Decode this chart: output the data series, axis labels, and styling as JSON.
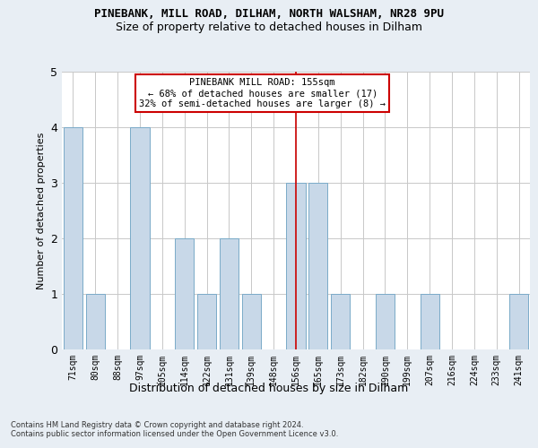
{
  "title_line1": "PINEBANK, MILL ROAD, DILHAM, NORTH WALSHAM, NR28 9PU",
  "title_line2": "Size of property relative to detached houses in Dilham",
  "xlabel": "Distribution of detached houses by size in Dilham",
  "ylabel": "Number of detached properties",
  "categories": [
    "71sqm",
    "80sqm",
    "88sqm",
    "97sqm",
    "105sqm",
    "114sqm",
    "122sqm",
    "131sqm",
    "139sqm",
    "148sqm",
    "156sqm",
    "165sqm",
    "173sqm",
    "182sqm",
    "190sqm",
    "199sqm",
    "207sqm",
    "216sqm",
    "224sqm",
    "233sqm",
    "241sqm"
  ],
  "values": [
    4,
    1,
    0,
    4,
    0,
    2,
    1,
    2,
    1,
    0,
    3,
    3,
    1,
    0,
    1,
    0,
    1,
    0,
    0,
    0,
    1
  ],
  "bar_color": "#c8d8e8",
  "bar_edge_color": "#7aaac8",
  "highlight_index": 10,
  "highlight_line_color": "#cc0000",
  "annotation_text": "PINEBANK MILL ROAD: 155sqm\n← 68% of detached houses are smaller (17)\n32% of semi-detached houses are larger (8) →",
  "annotation_box_color": "#ffffff",
  "annotation_box_edge": "#cc0000",
  "ylim": [
    0,
    5
  ],
  "yticks": [
    0,
    1,
    2,
    3,
    4,
    5
  ],
  "footer_text": "Contains HM Land Registry data © Crown copyright and database right 2024.\nContains public sector information licensed under the Open Government Licence v3.0.",
  "bg_color": "#e8eef4",
  "plot_bg_color": "#ffffff",
  "grid_color": "#c8c8c8",
  "title_fontsize": 9,
  "subtitle_fontsize": 9,
  "ylabel_fontsize": 8,
  "xlabel_fontsize": 9,
  "tick_fontsize": 7,
  "footer_fontsize": 6,
  "annot_fontsize": 7.5
}
